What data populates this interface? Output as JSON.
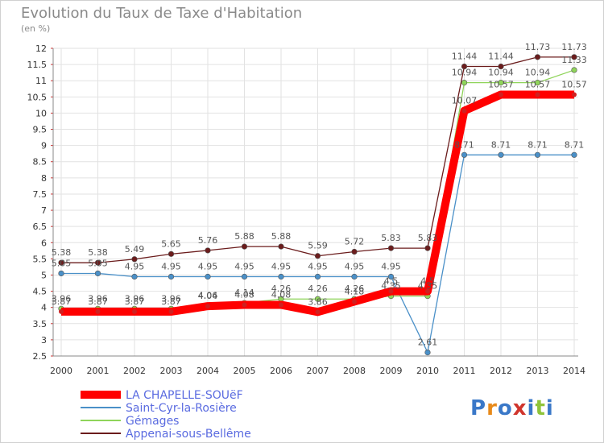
{
  "chart_data": {
    "type": "line",
    "title": "Evolution du Taux de Taxe d'Habitation",
    "subtitle": "(en %)",
    "xlabel": "",
    "ylabel": "",
    "x": [
      "2000",
      "2001",
      "2002",
      "2003",
      "2004",
      "2005",
      "2006",
      "2007",
      "2008",
      "2009",
      "2010",
      "2011",
      "2012",
      "2013",
      "2014"
    ],
    "ylim": [
      2.5,
      12
    ],
    "yticks": [
      "2.5",
      "3",
      "3.5",
      "4",
      "4.5",
      "5",
      "5.5",
      "6",
      "6.5",
      "7",
      "7.5",
      "8",
      "8.5",
      "9",
      "9.5",
      "10",
      "10.5",
      "11",
      "11.5",
      "12"
    ],
    "grid": true,
    "legend_position": "bottom-left",
    "series": [
      {
        "name": "Appenai-sous-Bellême",
        "color": "#6b1c1c",
        "values": [
          5.38,
          5.38,
          5.49,
          5.65,
          5.76,
          5.88,
          5.88,
          5.59,
          5.72,
          5.83,
          5.83,
          11.44,
          11.44,
          11.73,
          11.73
        ],
        "labels": [
          "5.38",
          "5.38",
          "5.49",
          "5.65",
          "5.76",
          "5.88",
          "5.88",
          "5.59",
          "5.72",
          "5.83",
          "5.83",
          "11.44",
          "11.44",
          "11.73",
          "11.73"
        ]
      },
      {
        "name": "Saint-Cyr-la-Rosière",
        "color": "#4a90c8",
        "values": [
          5.05,
          5.05,
          4.95,
          4.95,
          4.95,
          4.95,
          4.95,
          4.95,
          4.95,
          4.95,
          2.61,
          8.71,
          8.71,
          8.71,
          8.71
        ],
        "labels": [
          "5.05",
          "5.05",
          "4.95",
          "4.95",
          "4.95",
          "4.95",
          "4.95",
          "4.95",
          "4.95",
          "4.95",
          "2.61",
          "8.71",
          "8.71",
          "8.71",
          "8.71"
        ]
      },
      {
        "name": "Gémages",
        "color": "#8fd45a",
        "values": [
          3.96,
          3.96,
          3.96,
          3.96,
          4.06,
          4.14,
          4.26,
          4.26,
          4.26,
          4.35,
          4.35,
          10.94,
          10.94,
          10.94,
          11.33
        ],
        "labels": [
          "3.96",
          "3.96",
          "3.96",
          "3.96",
          "4.06",
          "4.14",
          "4.26",
          "4.26",
          "4.26",
          "4.35",
          "4.35",
          "10.94",
          "10.94",
          "10.94",
          "11.33"
        ]
      },
      {
        "name": "LA CHAPELLE-SOUëF",
        "color": "#ff0000",
        "values": [
          3.87,
          3.87,
          3.87,
          3.87,
          4.04,
          4.08,
          4.08,
          3.86,
          4.18,
          4.5,
          4.5,
          10.07,
          10.57,
          10.57,
          10.57
        ],
        "labels": [
          "3.87",
          "3.87",
          "3.87",
          "3.87",
          "4.04",
          "4.08",
          "4.08",
          "3.86",
          "4.18",
          "4.5",
          "4.5",
          "10.07",
          "10.57",
          "10.57",
          "10.57"
        ]
      }
    ],
    "legend": [
      {
        "name": "LA CHAPELLE-SOUëF",
        "color": "#ff0000",
        "thick": true
      },
      {
        "name": "Saint-Cyr-la-Rosière",
        "color": "#4a90c8",
        "thick": false
      },
      {
        "name": "Gémages",
        "color": "#8fd45a",
        "thick": false
      },
      {
        "name": "Appenai-sous-Bellême",
        "color": "#6b1c1c",
        "thick": false
      }
    ]
  },
  "legend_text_color": "#5a6be0",
  "brand": {
    "letters": [
      "P",
      "r",
      "o",
      "x",
      "i",
      "t",
      "i"
    ],
    "colors": [
      "#3a78c8",
      "#e88a1a",
      "#3a78c8",
      "#d0342c",
      "#3a78c8",
      "#8fc43a",
      "#3a78c8"
    ]
  }
}
